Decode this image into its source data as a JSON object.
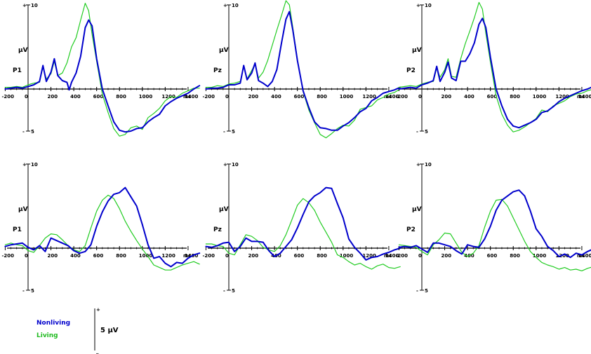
{
  "legend": {
    "nonliving_label": "Nonliving",
    "living_label": "Living",
    "scale_label": "5 µV",
    "scale_plus": "+",
    "scale_minus": "_",
    "nonliving_color": "#0000cc",
    "living_color": "#22cc22"
  },
  "chart_data": {
    "type": "line",
    "x_unit_label": "ms",
    "y_unit_label": "µV",
    "y_top_label": "10",
    "y_bottom_label": "5",
    "y_plus_sign": "+",
    "y_minus_sign": "-",
    "x_ticks": [
      "-200",
      "0",
      "200",
      "400",
      "600",
      "800",
      "1000",
      "1200",
      "1400"
    ],
    "xlim": [
      -200,
      1550
    ],
    "ylim": [
      -6,
      11
    ],
    "y_axis_up_positive": true,
    "panels": [
      {
        "electrode": "P1",
        "series": [
          {
            "name": "Nonliving",
            "x": [
              -200,
              -150,
              -100,
              -50,
              0,
              50,
              100,
              130,
              160,
              200,
              230,
              260,
              300,
              340,
              360,
              380,
              420,
              460,
              500,
              530,
              560,
              600,
              650,
              700,
              750,
              800,
              850,
              900,
              950,
              1000,
              1050,
              1100,
              1150,
              1200,
              1250,
              1300,
              1350,
              1400,
              1450,
              1500
            ],
            "y": [
              0,
              0.1,
              0.2,
              0.1,
              0.3,
              0.5,
              0.9,
              2.8,
              0.9,
              2.0,
              3.6,
              1.6,
              1.0,
              0.8,
              -0.1,
              0.8,
              1.9,
              3.9,
              7.3,
              8.2,
              7.5,
              3.6,
              0,
              -2.0,
              -3.9,
              -4.9,
              -5.1,
              -5.0,
              -4.7,
              -4.6,
              -3.9,
              -3.4,
              -3.0,
              -2.0,
              -1.5,
              -1.1,
              -0.8,
              -0.5,
              0,
              0.4
            ]
          },
          {
            "name": "Living",
            "x": [
              -200,
              -150,
              -100,
              -50,
              0,
              50,
              100,
              130,
              160,
              200,
              230,
              260,
              300,
              340,
              380,
              420,
              460,
              500,
              530,
              560,
              600,
              650,
              700,
              750,
              800,
              850,
              900,
              950,
              1000,
              1050,
              1100,
              1150,
              1200,
              1250,
              1300,
              1350,
              1400,
              1450,
              1500
            ],
            "y": [
              0.2,
              0.2,
              0.3,
              0.2,
              0.5,
              0.7,
              0.8,
              2.6,
              1.2,
              1.8,
              3.3,
              1.6,
              1.9,
              3.1,
              5.0,
              6.1,
              8.2,
              10.2,
              9.3,
              6.5,
              3.3,
              -0.6,
              -2.8,
              -4.7,
              -5.6,
              -5.4,
              -4.6,
              -4.4,
              -4.8,
              -3.4,
              -2.9,
              -2.3,
              -1.4,
              -0.9,
              -1.0,
              -0.5,
              -0.2,
              0.1,
              0.1
            ]
          }
        ]
      },
      {
        "electrode": "Pz",
        "series": [
          {
            "name": "Nonliving",
            "x": [
              -200,
              -150,
              -100,
              -50,
              0,
              50,
              100,
              130,
              160,
              200,
              230,
              260,
              300,
              340,
              380,
              420,
              460,
              500,
              530,
              560,
              600,
              650,
              700,
              750,
              800,
              850,
              900,
              950,
              1000,
              1050,
              1100,
              1150,
              1200,
              1250,
              1300,
              1350,
              1400,
              1450,
              1500
            ],
            "y": [
              0,
              0.1,
              0.1,
              0.2,
              0.5,
              0.5,
              0.7,
              2.8,
              1.1,
              1.9,
              3.1,
              1.0,
              0.7,
              0.3,
              0.9,
              2.3,
              5.4,
              8.3,
              9.2,
              7.0,
              3.4,
              -0.2,
              -2.2,
              -3.9,
              -4.6,
              -4.7,
              -4.9,
              -4.9,
              -4.4,
              -4.0,
              -3.4,
              -2.7,
              -2.3,
              -1.4,
              -1.0,
              -0.5,
              -0.3,
              -0.1,
              0.2
            ]
          },
          {
            "name": "Living",
            "x": [
              -200,
              -150,
              -100,
              -50,
              0,
              50,
              100,
              130,
              160,
              200,
              230,
              260,
              300,
              340,
              380,
              420,
              460,
              500,
              530,
              560,
              600,
              650,
              700,
              750,
              800,
              850,
              900,
              950,
              1000,
              1050,
              1100,
              1150,
              1200,
              1250,
              1300,
              1350,
              1400,
              1450,
              1500
            ],
            "y": [
              0.2,
              0.2,
              0.4,
              0.3,
              0.6,
              0.7,
              0.9,
              2.7,
              1.2,
              2.2,
              3.0,
              1.3,
              2.0,
              3.4,
              5.2,
              7.0,
              8.7,
              10.5,
              10.0,
              7.3,
              3.5,
              -0.3,
              -2.5,
              -4.0,
              -5.4,
              -5.8,
              -5.3,
              -4.7,
              -4.3,
              -4.4,
              -3.7,
              -2.4,
              -2.2,
              -2.0,
              -1.3,
              -1.0,
              -0.6,
              -0.4,
              0
            ]
          }
        ]
      },
      {
        "electrode": "P2",
        "series": [
          {
            "name": "Nonliving",
            "x": [
              -200,
              -150,
              -100,
              -50,
              0,
              50,
              100,
              130,
              160,
              200,
              230,
              260,
              300,
              340,
              380,
              420,
              460,
              500,
              530,
              560,
              600,
              650,
              700,
              750,
              800,
              850,
              900,
              950,
              1000,
              1050,
              1100,
              1150,
              1200,
              1250,
              1300,
              1350,
              1400,
              1450,
              1500
            ],
            "y": [
              0,
              0.1,
              0.2,
              0.1,
              0.5,
              0.7,
              1.0,
              2.7,
              0.9,
              2.0,
              3.2,
              1.3,
              1.0,
              3.3,
              3.3,
              4.2,
              5.5,
              7.7,
              8.4,
              7.3,
              3.8,
              0,
              -2.0,
              -3.6,
              -4.4,
              -4.6,
              -4.3,
              -4.0,
              -3.6,
              -2.8,
              -2.6,
              -2.1,
              -1.5,
              -1.1,
              -0.8,
              -0.5,
              -0.2,
              0,
              0.3
            ]
          },
          {
            "name": "Living",
            "x": [
              -200,
              -150,
              -100,
              -50,
              0,
              50,
              100,
              130,
              160,
              200,
              230,
              260,
              300,
              340,
              380,
              420,
              460,
              500,
              530,
              560,
              600,
              650,
              700,
              750,
              800,
              850,
              900,
              950,
              1000,
              1050,
              1100,
              1150,
              1200,
              1250,
              1300,
              1350,
              1400,
              1450,
              1500
            ],
            "y": [
              0.2,
              0.3,
              0.4,
              0.3,
              0.6,
              0.8,
              0.9,
              2.5,
              1.4,
              2.3,
              3.6,
              1.5,
              1.4,
              3.6,
              5.4,
              6.9,
              8.5,
              10.3,
              9.5,
              6.6,
              3.2,
              -0.8,
              -3.0,
              -4.3,
              -5.1,
              -4.9,
              -4.5,
              -4.0,
              -3.5,
              -2.5,
              -2.7,
              -2.0,
              -1.7,
              -1.4,
              -0.9,
              -0.6,
              -0.5,
              -0.2,
              0
            ]
          }
        ]
      },
      {
        "electrode": "P1",
        "series": [
          {
            "name": "Nonliving",
            "x": [
              -200,
              -150,
              -100,
              -50,
              0,
              50,
              100,
              150,
              200,
              250,
              300,
              350,
              400,
              450,
              500,
              550,
              600,
              650,
              700,
              750,
              800,
              850,
              900,
              950,
              1000,
              1050,
              1100,
              1150,
              1200,
              1250,
              1300,
              1350,
              1400,
              1450,
              1500
            ],
            "y": [
              0.2,
              0.4,
              0.5,
              0.6,
              0.1,
              -0.2,
              0.3,
              -0.4,
              1.2,
              0.9,
              0.6,
              0.3,
              -0.3,
              -0.6,
              -0.4,
              0.4,
              2.6,
              4.3,
              5.6,
              6.4,
              6.6,
              7.2,
              6.1,
              5.0,
              2.8,
              0.4,
              -1.2,
              -1.0,
              -1.8,
              -2.2,
              -1.7,
              -1.8,
              -1.2,
              -0.8,
              -0.6
            ]
          },
          {
            "name": "Living",
            "x": [
              -200,
              -150,
              -100,
              -50,
              0,
              50,
              100,
              150,
              200,
              250,
              300,
              350,
              400,
              450,
              500,
              550,
              600,
              650,
              700,
              750,
              800,
              850,
              900,
              950,
              1000,
              1050,
              1100,
              1150,
              1200,
              1250,
              1300,
              1350,
              1400,
              1450,
              1500
            ],
            "y": [
              0.4,
              0.6,
              0.4,
              0.3,
              -0.3,
              -0.5,
              0.3,
              1.2,
              1.7,
              1.6,
              1.0,
              0.3,
              -0.2,
              -0.4,
              0.3,
              2.4,
              4.4,
              5.7,
              6.3,
              5.9,
              4.7,
              3.2,
              2.0,
              0.9,
              -0.1,
              -1.0,
              -2.0,
              -2.3,
              -2.6,
              -2.6,
              -2.3,
              -2.0,
              -1.8,
              -1.6,
              -1.9
            ]
          }
        ]
      },
      {
        "electrode": "Pz",
        "series": [
          {
            "name": "Nonliving",
            "x": [
              -200,
              -150,
              -100,
              -50,
              0,
              50,
              100,
              150,
              200,
              250,
              300,
              350,
              400,
              450,
              500,
              550,
              600,
              650,
              700,
              750,
              800,
              850,
              900,
              950,
              1000,
              1050,
              1100,
              1150,
              1200,
              1250,
              1300,
              1350,
              1400,
              1450,
              1500
            ],
            "y": [
              0.2,
              0.1,
              0.3,
              0.6,
              0.7,
              -0.4,
              0.2,
              1.2,
              0.8,
              0.8,
              0.7,
              -0.3,
              -1.0,
              -0.6,
              0.2,
              1.0,
              2.4,
              4.0,
              5.5,
              6.2,
              6.6,
              7.2,
              7.1,
              5.3,
              3.6,
              1.1,
              0.1,
              -0.6,
              -1.4,
              -1.1,
              -1.0,
              -0.7,
              -0.5,
              -0.2,
              0
            ]
          },
          {
            "name": "Living",
            "x": [
              -200,
              -150,
              -100,
              -50,
              0,
              50,
              100,
              150,
              200,
              250,
              300,
              350,
              400,
              450,
              500,
              550,
              600,
              650,
              700,
              750,
              800,
              850,
              900,
              950,
              1000,
              1050,
              1100,
              1150,
              1200,
              1250,
              1300,
              1350,
              1400,
              1450,
              1500
            ],
            "y": [
              0.5,
              0.5,
              0.3,
              0.2,
              -0.6,
              -0.8,
              0.4,
              1.6,
              1.4,
              0.9,
              0.1,
              -0.2,
              -0.4,
              0.3,
              1.6,
              3.3,
              5.1,
              5.9,
              5.4,
              4.5,
              3.1,
              1.9,
              0.7,
              -0.8,
              -1.1,
              -1.6,
              -2.0,
              -1.8,
              -2.2,
              -2.5,
              -2.1,
              -1.9,
              -2.3,
              -2.4,
              -2.2
            ]
          }
        ]
      },
      {
        "electrode": "P2",
        "series": [
          {
            "name": "Nonliving",
            "x": [
              -200,
              -150,
              -100,
              -50,
              0,
              50,
              100,
              150,
              200,
              250,
              300,
              350,
              400,
              450,
              500,
              550,
              600,
              650,
              700,
              750,
              800,
              850,
              900,
              950,
              1000,
              1050,
              1100,
              1150,
              1200,
              1250,
              1300,
              1350,
              1400,
              1450,
              1500
            ],
            "y": [
              0.1,
              0.2,
              0.1,
              0.3,
              -0.1,
              -0.5,
              0.6,
              0.6,
              0.4,
              0.2,
              -0.3,
              -0.7,
              0.4,
              0.2,
              0.1,
              1.1,
              2.6,
              4.5,
              5.7,
              6.2,
              6.7,
              6.9,
              6.2,
              4.4,
              2.3,
              1.4,
              0.2,
              -0.3,
              -1.0,
              -0.7,
              -1.1,
              -0.6,
              -0.8,
              -0.4,
              -0.1
            ]
          },
          {
            "name": "Living",
            "x": [
              -200,
              -150,
              -100,
              -50,
              0,
              50,
              100,
              150,
              200,
              250,
              300,
              350,
              400,
              450,
              500,
              550,
              600,
              650,
              700,
              750,
              800,
              850,
              900,
              950,
              1000,
              1050,
              1100,
              1150,
              1200,
              1250,
              1300,
              1350,
              1400,
              1450,
              1500
            ],
            "y": [
              0.4,
              0.3,
              0.2,
              0.1,
              -0.4,
              -0.8,
              0.4,
              1.0,
              1.8,
              1.7,
              0.6,
              -0.5,
              -1.0,
              -0.6,
              0.3,
              2.5,
              4.4,
              5.7,
              5.8,
              5.0,
              3.6,
              2.2,
              0.8,
              -0.4,
              -1.1,
              -1.7,
              -2.0,
              -2.2,
              -2.5,
              -2.3,
              -2.6,
              -2.5,
              -2.7,
              -2.4,
              -2.2
            ]
          }
        ]
      }
    ]
  }
}
